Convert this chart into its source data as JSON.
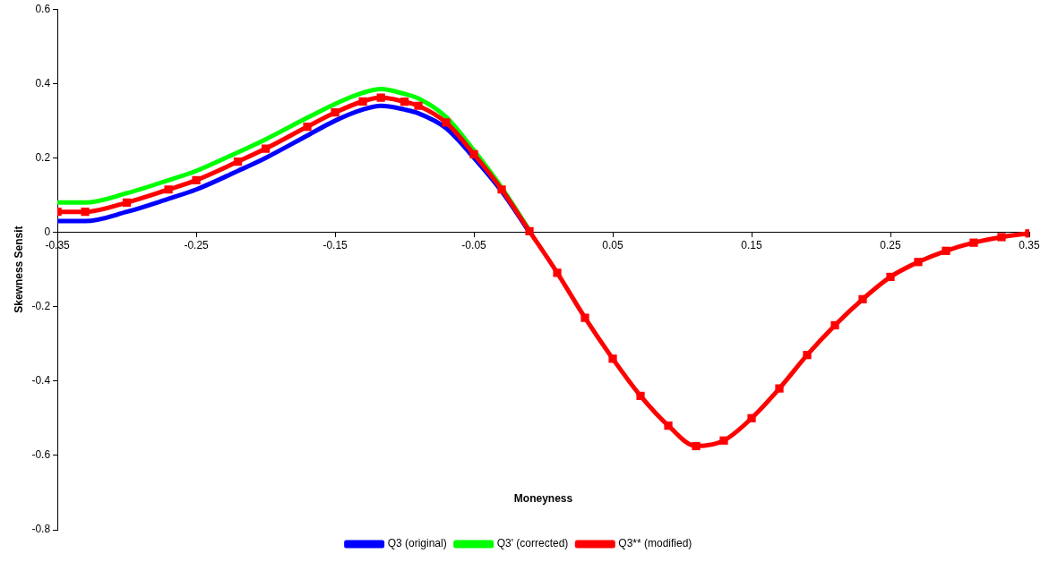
{
  "chart_data": {
    "type": "line",
    "xlabel": "Moneyness",
    "ylabel": "Skewness Sensit",
    "x": [
      -0.35,
      -0.33,
      -0.3,
      -0.27,
      -0.25,
      -0.22,
      -0.2,
      -0.17,
      -0.15,
      -0.13,
      -0.117,
      -0.1,
      -0.09,
      -0.07,
      -0.05,
      -0.03,
      -0.01,
      0.01,
      0.03,
      0.05,
      0.07,
      0.09,
      0.11,
      0.13,
      0.15,
      0.17,
      0.19,
      0.21,
      0.23,
      0.25,
      0.27,
      0.29,
      0.31,
      0.33,
      0.35
    ],
    "series": [
      {
        "name": "Q3 (original)",
        "color": "#0000ff",
        "marker": "none",
        "values": [
          0.03,
          0.03,
          0.055,
          0.09,
          0.115,
          0.165,
          0.2,
          0.26,
          0.3,
          0.33,
          0.34,
          0.33,
          0.32,
          0.28,
          0.2,
          0.11,
          0,
          null,
          null,
          null,
          null,
          null,
          null,
          null,
          null,
          null,
          null,
          null,
          null,
          null,
          null,
          null,
          null,
          null,
          null
        ]
      },
      {
        "name": "Q3' (corrected)",
        "color": "#00ff00",
        "marker": "none",
        "values": [
          0.08,
          0.08,
          0.105,
          0.14,
          0.165,
          0.215,
          0.25,
          0.308,
          0.345,
          0.375,
          0.385,
          0.372,
          0.36,
          0.31,
          0.22,
          0.12,
          0.005,
          null,
          null,
          null,
          null,
          null,
          null,
          null,
          null,
          null,
          null,
          null,
          null,
          null,
          null,
          null,
          null,
          null,
          null
        ]
      },
      {
        "name": "Q3** (modified)",
        "color": "#ff0000",
        "marker": "square",
        "values": [
          0.055,
          0.055,
          0.08,
          0.115,
          0.14,
          0.19,
          0.225,
          0.284,
          0.322,
          0.352,
          0.362,
          0.351,
          0.34,
          0.295,
          0.21,
          0.115,
          0.003,
          -0.109,
          -0.23,
          -0.34,
          -0.44,
          -0.52,
          -0.575,
          -0.56,
          -0.5,
          -0.42,
          -0.33,
          -0.25,
          -0.18,
          -0.12,
          -0.08,
          -0.05,
          -0.028,
          -0.013,
          -0.003
        ]
      }
    ],
    "xlim": [
      -0.35,
      0.35
    ],
    "xticks": [
      -0.35,
      -0.25,
      -0.15,
      -0.05,
      0.05,
      0.15,
      0.25,
      0.35
    ],
    "ylim": [
      -0.8,
      0.6
    ],
    "yticks": [
      -0.8,
      -0.6,
      -0.4,
      -0.2,
      0,
      0.2,
      0.4,
      0.6
    ],
    "grid": false,
    "legend": "bottom",
    "line_style": "solid"
  }
}
